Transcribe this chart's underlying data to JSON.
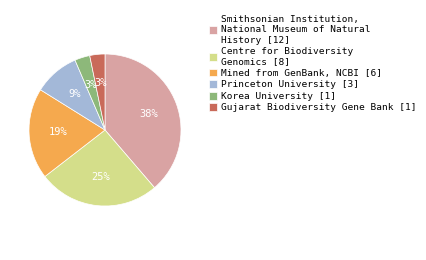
{
  "labels": [
    "Smithsonian Institution,\nNational Museum of Natural\nHistory [12]",
    "Centre for Biodiversity\nGenomics [8]",
    "Mined from GenBank, NCBI [6]",
    "Princeton University [3]",
    "Korea University [1]",
    "Gujarat Biodiversity Gene Bank [1]"
  ],
  "values": [
    12,
    8,
    6,
    3,
    1,
    1
  ],
  "colors": [
    "#d9a3a3",
    "#d4de8a",
    "#f5a94e",
    "#a3b8d8",
    "#8db87a",
    "#c96a5a"
  ],
  "pct_labels": [
    "38%",
    "25%",
    "19%",
    "9%",
    "3%",
    "3%"
  ],
  "background_color": "#ffffff",
  "text_color": "#ffffff",
  "pct_fontsize": 7.5,
  "legend_fontsize": 6.8
}
